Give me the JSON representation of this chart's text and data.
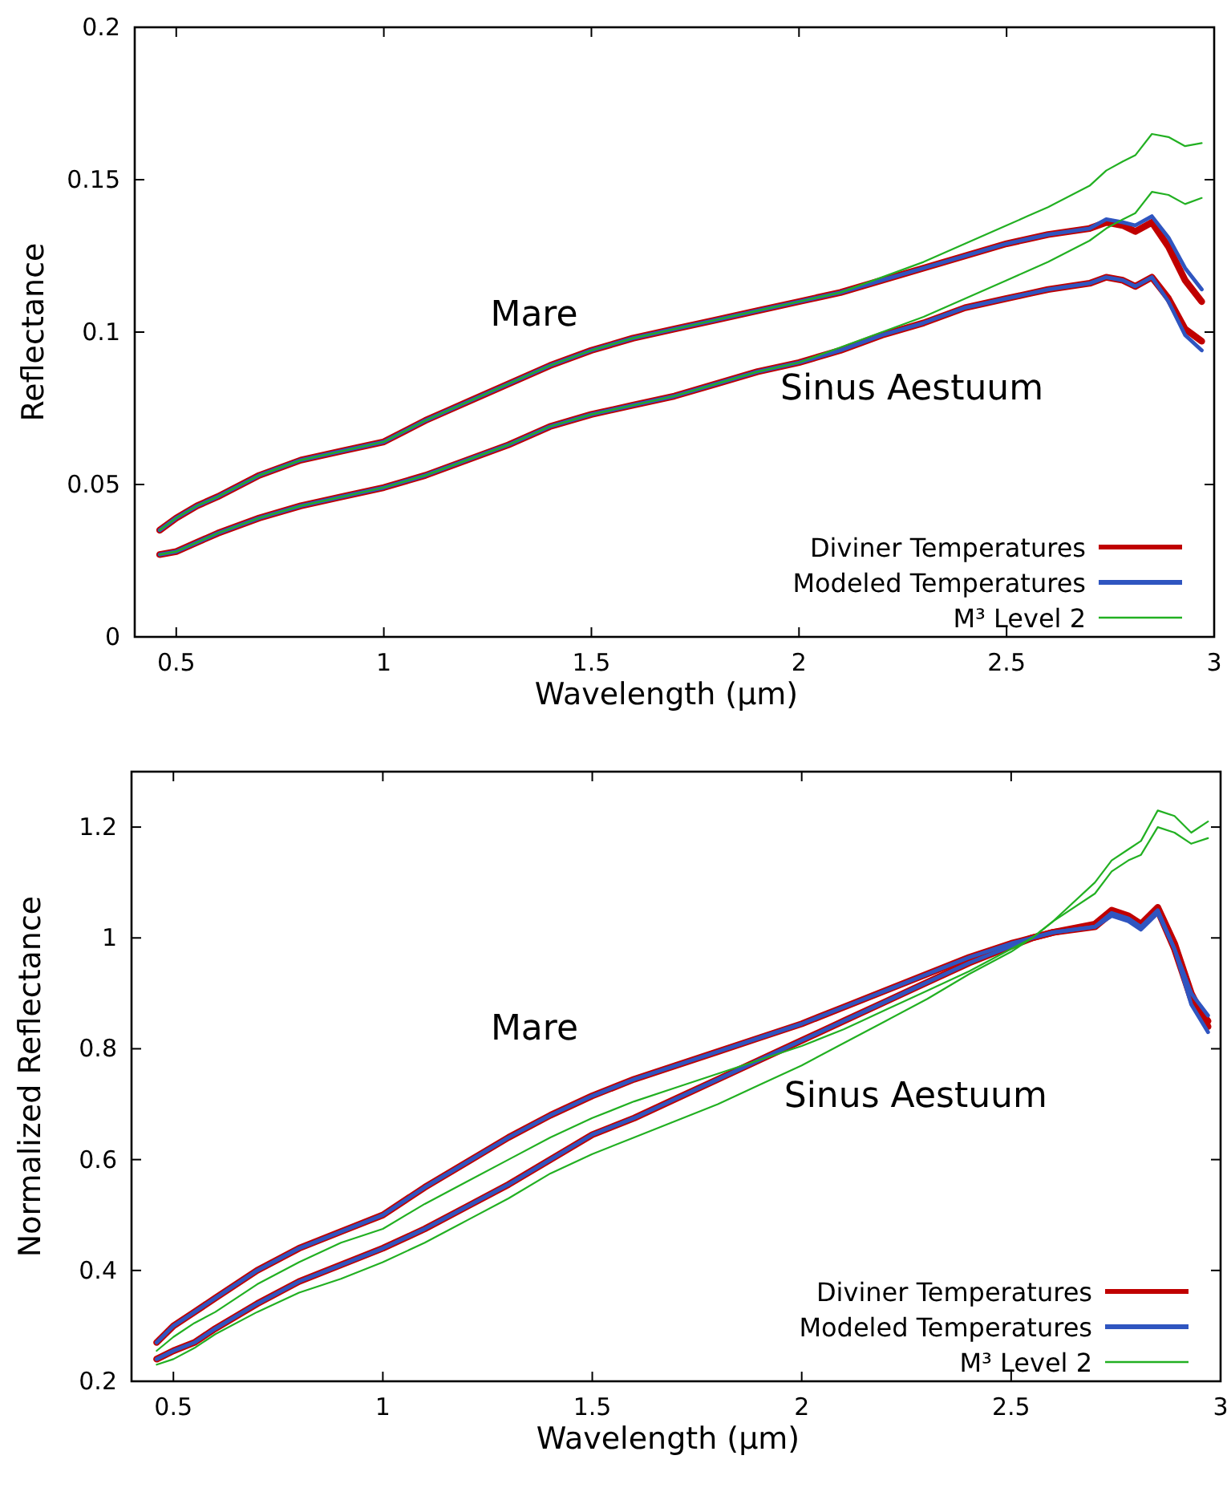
{
  "chart_data": [
    {
      "type": "line",
      "xlabel": "Wavelength (µm)",
      "ylabel": "Reflectance",
      "xlim": [
        0.4,
        3
      ],
      "ylim": [
        0,
        0.2
      ],
      "xticks": [
        0.5,
        1,
        1.5,
        2,
        2.5,
        3
      ],
      "yticks": [
        0,
        0.05,
        0.1,
        0.15,
        0.2
      ],
      "grid": false,
      "legend": "bottom right",
      "marker": "none",
      "line_style": "solid",
      "annotations": [
        "Mare",
        "Sinus Aestuum"
      ],
      "x": [
        0.46,
        0.5,
        0.55,
        0.6,
        0.7,
        0.8,
        0.9,
        1.0,
        1.1,
        1.2,
        1.3,
        1.4,
        1.5,
        1.6,
        1.7,
        1.8,
        1.9,
        2.0,
        2.1,
        2.2,
        2.3,
        2.4,
        2.5,
        2.55,
        2.6,
        2.7,
        2.74,
        2.78,
        2.81,
        2.85,
        2.89,
        2.93,
        2.97
      ],
      "series": [
        {
          "name": "Diviner Temperatures",
          "color": "#c00000",
          "values": [
            0.035,
            0.039,
            0.043,
            0.046,
            0.053,
            0.058,
            0.061,
            0.064,
            0.071,
            0.077,
            0.083,
            0.089,
            0.094,
            0.098,
            0.101,
            0.104,
            0.107,
            0.11,
            0.113,
            0.117,
            0.121,
            0.125,
            0.129,
            0.1305,
            0.132,
            0.134,
            0.136,
            0.135,
            0.133,
            0.136,
            0.128,
            0.117,
            0.11
          ]
        },
        {
          "color": "#c00000",
          "values": [
            0.027,
            0.028,
            0.031,
            0.034,
            0.039,
            0.043,
            0.046,
            0.049,
            0.053,
            0.058,
            0.063,
            0.069,
            0.073,
            0.076,
            0.079,
            0.083,
            0.087,
            0.09,
            0.094,
            0.099,
            0.103,
            0.108,
            0.111,
            0.1125,
            0.114,
            0.116,
            0.118,
            0.117,
            0.115,
            0.118,
            0.111,
            0.101,
            0.097
          ]
        },
        {
          "name": "Modeled Temperatures",
          "color": "#2f55c0",
          "values": [
            0.035,
            0.039,
            0.043,
            0.046,
            0.053,
            0.058,
            0.061,
            0.064,
            0.071,
            0.077,
            0.083,
            0.089,
            0.094,
            0.098,
            0.101,
            0.104,
            0.107,
            0.11,
            0.113,
            0.117,
            0.121,
            0.125,
            0.129,
            0.1305,
            0.132,
            0.134,
            0.137,
            0.136,
            0.135,
            0.138,
            0.131,
            0.121,
            0.114
          ]
        },
        {
          "color": "#2f55c0",
          "values": [
            0.027,
            0.028,
            0.031,
            0.034,
            0.039,
            0.043,
            0.046,
            0.049,
            0.053,
            0.058,
            0.063,
            0.069,
            0.073,
            0.076,
            0.079,
            0.083,
            0.087,
            0.09,
            0.094,
            0.099,
            0.103,
            0.108,
            0.111,
            0.1125,
            0.114,
            0.116,
            0.118,
            0.117,
            0.115,
            0.118,
            0.11,
            0.099,
            0.094
          ]
        },
        {
          "name": "M³ Level 2",
          "color": "#22b022",
          "values": [
            0.035,
            0.039,
            0.043,
            0.046,
            0.053,
            0.058,
            0.061,
            0.064,
            0.071,
            0.077,
            0.083,
            0.089,
            0.094,
            0.098,
            0.101,
            0.104,
            0.107,
            0.11,
            0.113,
            0.118,
            0.123,
            0.129,
            0.135,
            0.138,
            0.141,
            0.148,
            0.153,
            0.156,
            0.158,
            0.165,
            0.164,
            0.161,
            0.162
          ]
        },
        {
          "color": "#22b022",
          "values": [
            0.027,
            0.028,
            0.031,
            0.034,
            0.039,
            0.043,
            0.046,
            0.049,
            0.053,
            0.058,
            0.063,
            0.069,
            0.073,
            0.076,
            0.079,
            0.083,
            0.087,
            0.09,
            0.095,
            0.1,
            0.105,
            0.111,
            0.117,
            0.12,
            0.123,
            0.13,
            0.134,
            0.137,
            0.139,
            0.146,
            0.145,
            0.142,
            0.144
          ]
        }
      ]
    },
    {
      "type": "line",
      "xlabel": "Wavelength (µm)",
      "ylabel": "Normalized Reflectance",
      "xlim": [
        0.4,
        3
      ],
      "ylim": [
        0.2,
        1.3
      ],
      "xticks": [
        0.5,
        1,
        1.5,
        2,
        2.5,
        3
      ],
      "yticks": [
        0.2,
        0.4,
        0.6,
        0.8,
        1,
        1.2
      ],
      "grid": false,
      "legend": "bottom right",
      "marker": "none",
      "line_style": "solid",
      "annotations": [
        "Mare",
        "Sinus Aestuum"
      ],
      "x": [
        0.46,
        0.5,
        0.55,
        0.6,
        0.7,
        0.8,
        0.9,
        1.0,
        1.1,
        1.2,
        1.3,
        1.4,
        1.5,
        1.6,
        1.7,
        1.8,
        1.9,
        2.0,
        2.1,
        2.2,
        2.3,
        2.4,
        2.5,
        2.55,
        2.6,
        2.7,
        2.74,
        2.78,
        2.81,
        2.85,
        2.89,
        2.93,
        2.97
      ],
      "series": [
        {
          "name": "Diviner Temperatures",
          "color": "#c00000",
          "values": [
            0.27,
            0.3,
            0.325,
            0.35,
            0.4,
            0.44,
            0.47,
            0.5,
            0.55,
            0.595,
            0.64,
            0.68,
            0.715,
            0.745,
            0.77,
            0.795,
            0.82,
            0.845,
            0.875,
            0.905,
            0.935,
            0.965,
            0.99,
            1.0,
            1.01,
            1.02,
            1.045,
            1.035,
            1.02,
            1.05,
            0.98,
            0.89,
            0.85
          ]
        },
        {
          "color": "#c00000",
          "values": [
            0.24,
            0.255,
            0.27,
            0.295,
            0.34,
            0.38,
            0.41,
            0.44,
            0.475,
            0.515,
            0.555,
            0.6,
            0.645,
            0.675,
            0.71,
            0.745,
            0.78,
            0.815,
            0.85,
            0.885,
            0.92,
            0.955,
            0.985,
            1.0,
            1.01,
            1.025,
            1.05,
            1.04,
            1.025,
            1.055,
            0.99,
            0.9,
            0.84
          ]
        },
        {
          "name": "Modeled Temperatures",
          "color": "#2f55c0",
          "values": [
            0.27,
            0.3,
            0.325,
            0.35,
            0.4,
            0.44,
            0.47,
            0.5,
            0.55,
            0.595,
            0.64,
            0.68,
            0.715,
            0.745,
            0.77,
            0.795,
            0.82,
            0.845,
            0.875,
            0.905,
            0.935,
            0.965,
            0.99,
            1.0,
            1.01,
            1.02,
            1.04,
            1.03,
            1.015,
            1.045,
            0.98,
            0.9,
            0.86
          ]
        },
        {
          "color": "#2f55c0",
          "values": [
            0.24,
            0.255,
            0.27,
            0.295,
            0.34,
            0.38,
            0.41,
            0.44,
            0.475,
            0.515,
            0.555,
            0.6,
            0.645,
            0.675,
            0.71,
            0.745,
            0.78,
            0.815,
            0.85,
            0.885,
            0.92,
            0.955,
            0.985,
            1.0,
            1.01,
            1.02,
            1.045,
            1.035,
            1.02,
            1.05,
            0.98,
            0.88,
            0.83
          ]
        },
        {
          "name": "M³ Level 2",
          "color": "#22b022",
          "values": [
            0.255,
            0.28,
            0.305,
            0.325,
            0.375,
            0.415,
            0.45,
            0.475,
            0.52,
            0.56,
            0.6,
            0.64,
            0.675,
            0.705,
            0.73,
            0.755,
            0.78,
            0.805,
            0.835,
            0.87,
            0.905,
            0.94,
            0.98,
            1.0,
            1.03,
            1.08,
            1.12,
            1.14,
            1.15,
            1.2,
            1.19,
            1.17,
            1.18
          ]
        },
        {
          "color": "#22b022",
          "values": [
            0.23,
            0.24,
            0.26,
            0.285,
            0.325,
            0.36,
            0.385,
            0.415,
            0.45,
            0.49,
            0.53,
            0.575,
            0.61,
            0.64,
            0.67,
            0.7,
            0.735,
            0.77,
            0.81,
            0.85,
            0.89,
            0.935,
            0.975,
            1.0,
            1.03,
            1.1,
            1.14,
            1.16,
            1.175,
            1.23,
            1.22,
            1.19,
            1.21
          ]
        }
      ]
    }
  ]
}
